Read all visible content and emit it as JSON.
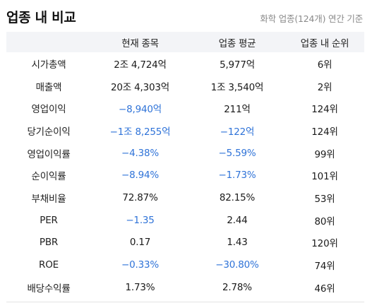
{
  "header": {
    "title": "업종 내 비교",
    "subtitle": "화학 업종(124개) 연간 기준"
  },
  "table": {
    "columns": [
      "",
      "현재 종목",
      "업종 평균",
      "업종 내 순위"
    ],
    "rows": [
      {
        "label": "시가총액",
        "current": "2조 4,724억",
        "average": "5,977억",
        "rank": "6위",
        "current_neg": false,
        "average_neg": false
      },
      {
        "label": "매출액",
        "current": "20조 4,303억",
        "average": "1조 3,540억",
        "rank": "2위",
        "current_neg": false,
        "average_neg": false
      },
      {
        "label": "영업이익",
        "current": "−8,940억",
        "average": "211억",
        "rank": "124위",
        "current_neg": true,
        "average_neg": false
      },
      {
        "label": "당기순이익",
        "current": "−1조 8,255억",
        "average": "−122억",
        "rank": "124위",
        "current_neg": true,
        "average_neg": true
      },
      {
        "label": "영업이익률",
        "current": "−4.38%",
        "average": "−5.59%",
        "rank": "99위",
        "current_neg": true,
        "average_neg": true
      },
      {
        "label": "순이익률",
        "current": "−8.94%",
        "average": "−1.73%",
        "rank": "101위",
        "current_neg": true,
        "average_neg": true
      },
      {
        "label": "부채비율",
        "current": "72.87%",
        "average": "82.15%",
        "rank": "53위",
        "current_neg": false,
        "average_neg": false
      },
      {
        "label": "PER",
        "current": "−1.35",
        "average": "2.44",
        "rank": "80위",
        "current_neg": true,
        "average_neg": false
      },
      {
        "label": "PBR",
        "current": "0.17",
        "average": "1.43",
        "rank": "120위",
        "current_neg": false,
        "average_neg": false
      },
      {
        "label": "ROE",
        "current": "−0.33%",
        "average": "−30.80%",
        "rank": "74위",
        "current_neg": true,
        "average_neg": true
      },
      {
        "label": "배당수익률",
        "current": "1.73%",
        "average": "2.78%",
        "rank": "46위",
        "current_neg": false,
        "average_neg": false
      }
    ]
  },
  "colors": {
    "negative": "#2f73d8",
    "header_bg": "#f3f4f7",
    "subtitle": "#8a8a8a"
  }
}
